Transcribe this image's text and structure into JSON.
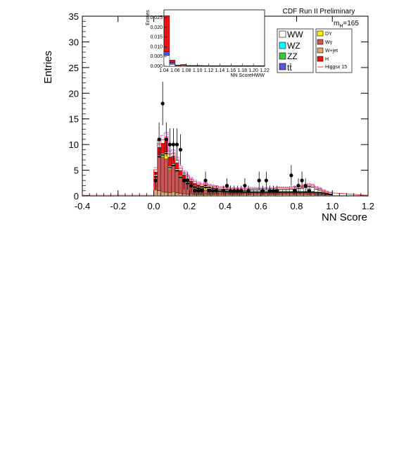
{
  "chart_data": {
    "type": "bar",
    "xlabel": "NN Score",
    "ylabel": "Entries",
    "xlim": [
      -0.4,
      1.2
    ],
    "ylim": [
      0,
      35
    ],
    "x_ticks": [
      "-0.4",
      "-0.2",
      "0.0",
      "0.2",
      "0.4",
      "0.6",
      "0.8",
      "1.0",
      "1.2"
    ],
    "y_ticks": [
      "0",
      "5",
      "10",
      "15",
      "20",
      "25",
      "30",
      "35"
    ],
    "header": "CDF Run II Preliminary",
    "mass_label_main": "m",
    "mass_label_sub": "H",
    "mass_label_value": "=165",
    "bin_width": 0.02,
    "bin_start": 0.0,
    "stack_series": [
      {
        "name": "H",
        "color": "#ee1111",
        "values": [
          0.5,
          1.5,
          2.0,
          2.2,
          1.8,
          1.5,
          1.2,
          1.0,
          0.8,
          0.6,
          0.5,
          0.4,
          0.3,
          0.25,
          0.2,
          0.2,
          0.15,
          0.15,
          0.1,
          0.1,
          0.1,
          0.08,
          0.08,
          0.06,
          0.06,
          0.05,
          0.05,
          0.05,
          0.04,
          0.04,
          0.04,
          0.03,
          0.03,
          0.03,
          0.03,
          0.02,
          0.02,
          0.02,
          0.02,
          0.02,
          0.02,
          0.02,
          0.01,
          0.01,
          0.01,
          0.01,
          0.01,
          0.01,
          0.01,
          0.01
        ]
      },
      {
        "name": "WW",
        "color": "#ffffff",
        "values": [
          0.3,
          0.2,
          0.2,
          0.2,
          0.2,
          0.2,
          0.2,
          0.2,
          0.2,
          0.2,
          0.2,
          0.2,
          0.2,
          0.2,
          0.2,
          0.2,
          0.2,
          0.2,
          0.2,
          0.2,
          0.2,
          0.2,
          0.2,
          0.2,
          0.2,
          0.2,
          0.2,
          0.3,
          0.3,
          0.3,
          0.3,
          0.3,
          0.3,
          0.3,
          0.4,
          0.4,
          0.4,
          0.4,
          0.5,
          0.5,
          0.6,
          0.7,
          0.8,
          1.0,
          0.9,
          0.6,
          0.4,
          0.2,
          0.1,
          0.05
        ]
      },
      {
        "name": "WZ",
        "color": "#00ffff",
        "values": [
          0.05,
          0.05,
          0.05,
          0.05,
          0.05,
          0.05,
          0.05,
          0.05,
          0.05,
          0.05,
          0.05,
          0.05,
          0.05,
          0.05,
          0.05,
          0.05,
          0.05,
          0.05,
          0.05,
          0.05,
          0.05,
          0.05,
          0.05,
          0.05,
          0.05,
          0.05,
          0.05,
          0.05,
          0.05,
          0.05,
          0.05,
          0.05,
          0.05,
          0.05,
          0.05,
          0.05,
          0.05,
          0.05,
          0.05,
          0.05,
          0.05,
          0.05,
          0.05,
          0.05,
          0.05,
          0.05,
          0.05,
          0.05,
          0.05,
          0.05
        ]
      },
      {
        "name": "ZZ",
        "color": "#33cc33",
        "values": [
          0.05,
          0.05,
          0.05,
          0.05,
          0.05,
          0.05,
          0.05,
          0.05,
          0.05,
          0.05,
          0.05,
          0.05,
          0.05,
          0.05,
          0.05,
          0.05,
          0.05,
          0.05,
          0.05,
          0.05,
          0.05,
          0.05,
          0.05,
          0.05,
          0.05,
          0.05,
          0.05,
          0.05,
          0.05,
          0.05,
          0.05,
          0.05,
          0.05,
          0.05,
          0.05,
          0.05,
          0.05,
          0.05,
          0.05,
          0.05,
          0.05,
          0.05,
          0.05,
          0.05,
          0.05,
          0.05,
          0.05,
          0.05,
          0.05,
          0.05
        ]
      },
      {
        "name": "tt̄",
        "color": "#5555dd",
        "values": [
          0.05,
          0.05,
          0.05,
          0.05,
          0.05,
          0.05,
          0.05,
          0.05,
          0.05,
          0.05,
          0.05,
          0.05,
          0.05,
          0.05,
          0.05,
          0.05,
          0.05,
          0.05,
          0.05,
          0.05,
          0.05,
          0.05,
          0.05,
          0.05,
          0.05,
          0.05,
          0.05,
          0.05,
          0.05,
          0.05,
          0.05,
          0.05,
          0.05,
          0.05,
          0.05,
          0.05,
          0.05,
          0.05,
          0.05,
          0.05,
          0.05,
          0.05,
          0.05,
          0.05,
          0.05,
          0.05,
          0.05,
          0.05,
          0.05,
          0.05
        ]
      },
      {
        "name": "DY",
        "color": "#ffee00",
        "values": [
          0.1,
          0.1,
          0.3,
          1.0,
          0.3,
          0.1,
          0.1,
          0.1,
          0.1,
          0.1,
          0.1,
          0.1,
          0.1,
          0.1,
          0.5,
          0.1,
          0.1,
          0.1,
          0.1,
          0.1,
          0.1,
          0.1,
          0.1,
          0.1,
          0.1,
          0.1,
          0.1,
          0.1,
          0.1,
          0.1,
          0.1,
          0.1,
          0.1,
          0.1,
          0.1,
          0.1,
          0.1,
          0.1,
          0.1,
          0.1,
          0.1,
          0.1,
          0.1,
          0.1,
          0.1,
          0.1,
          0.1,
          0.1,
          0.1,
          0.05
        ]
      },
      {
        "name": "Wγ",
        "color": "#cc5555",
        "values": [
          2.4,
          6.5,
          6.8,
          6.5,
          4.5,
          5.0,
          4.2,
          3.0,
          2.4,
          2.0,
          1.6,
          1.3,
          1.1,
          0.9,
          0.8,
          0.8,
          0.7,
          0.6,
          0.5,
          0.5,
          0.4,
          0.3,
          0.3,
          0.3,
          0.3,
          0.3,
          0.3,
          0.3,
          0.3,
          0.3,
          0.3,
          0.3,
          0.3,
          0.3,
          0.3,
          0.3,
          0.3,
          0.3,
          0.3,
          0.3,
          0.3,
          0.3,
          0.3,
          0.3,
          0.3,
          0.3,
          0.3,
          0.2,
          0.1,
          0.05
        ]
      },
      {
        "name": "W+jet",
        "color": "#d9a87a",
        "values": [
          1.2,
          1.0,
          0.8,
          0.7,
          0.6,
          0.8,
          0.6,
          0.5,
          0.4,
          0.3,
          0.3,
          0.3,
          0.3,
          0.3,
          0.3,
          0.3,
          0.3,
          0.3,
          0.3,
          0.3,
          0.3,
          0.3,
          0.3,
          0.3,
          0.3,
          0.3,
          0.3,
          0.3,
          0.3,
          0.3,
          0.3,
          0.3,
          0.3,
          0.3,
          0.3,
          0.3,
          0.3,
          0.3,
          0.3,
          0.3,
          0.3,
          0.3,
          0.3,
          0.3,
          0.3,
          0.2,
          0.2,
          0.15,
          0.1,
          0.05
        ]
      }
    ],
    "signal_overlay": {
      "name": "Higgsx 15",
      "color": "#ff3333"
    },
    "data_points": {
      "x": [
        0.01,
        0.03,
        0.05,
        0.07,
        0.09,
        0.11,
        0.13,
        0.15,
        0.17,
        0.19,
        0.21,
        0.23,
        0.25,
        0.27,
        0.29,
        0.31,
        0.33,
        0.35,
        0.37,
        0.39,
        0.41,
        0.43,
        0.45,
        0.47,
        0.49,
        0.51,
        0.53,
        0.55,
        0.57,
        0.59,
        0.61,
        0.63,
        0.65,
        0.67,
        0.69,
        0.71,
        0.73,
        0.75,
        0.77,
        0.79,
        0.81,
        0.83,
        0.85,
        0.87,
        0.89,
        0.91,
        0.93,
        0.95,
        0.97,
        0.99
      ],
      "y": [
        3,
        11,
        18,
        11,
        10,
        10,
        10,
        9,
        3,
        3,
        2,
        1,
        1,
        1,
        3,
        1,
        1,
        1,
        0,
        1,
        2,
        1,
        1,
        1,
        1,
        2,
        1,
        0,
        0,
        3,
        1,
        3,
        1,
        1,
        1,
        0,
        0,
        0,
        4,
        1,
        2,
        3,
        2,
        1,
        0,
        0,
        0,
        0,
        0,
        0
      ]
    },
    "legend_left": [
      "WW",
      "WZ",
      "ZZ",
      "tt̄"
    ],
    "legend_right": [
      "DY",
      "Wγ",
      "W+jet",
      "H",
      "Higgsx 15"
    ],
    "inset": {
      "ylabel": "Entries",
      "xlabel": "NN ScoreHWW",
      "y_ticks": [
        "0.000",
        "0.005",
        "0.010",
        "0.015",
        "0.020",
        "0.025"
      ],
      "x_ticks": [
        "1.04",
        "1.06",
        "1.08",
        "1.10",
        "1.12",
        "1.14",
        "1.16",
        "1.18",
        "1.20",
        "1.22"
      ],
      "ylim": [
        0,
        0.029
      ],
      "xlim": [
        1.04,
        1.22
      ],
      "bins_x": [
        1.04,
        1.05,
        1.06,
        1.07,
        1.08,
        1.09,
        1.1,
        1.11,
        1.12,
        1.13,
        1.14,
        1.15,
        1.16,
        1.17,
        1.18,
        1.19,
        1.2,
        1.21,
        1.22
      ],
      "series": [
        {
          "name": "WW",
          "color": "#ffffff",
          "values": [
            0.0055,
            0.001,
            0.0003,
            0.0004,
            0.0002,
            0.0002,
            0.0002,
            0.0001,
            0.0001,
            0.0001,
            0.0001,
            0.0001,
            0.0001,
            0.0001,
            0.0001,
            0.0001,
            0.0001,
            0.0001
          ]
        },
        {
          "name": "tt̄",
          "color": "#5555dd",
          "values": [
            0.002,
            0.001,
            0.0001,
            0.0001,
            0.0001,
            0.0001,
            0.0001,
            0.0001,
            0.0001,
            0.0001,
            0.0001,
            0.0001,
            0.0001,
            0.0001,
            0.0001,
            0.0001,
            0.0001,
            0.0001
          ]
        },
        {
          "name": "H",
          "color": "#ee1111",
          "values": [
            0.0185,
            0.0012,
            0.0002,
            0.0004,
            0.0001,
            0.0001,
            0.0001,
            0.0001,
            0.0001,
            0.0001,
            0.0001,
            0.0001,
            0.0001,
            0.0001,
            0.0001,
            0.0001,
            0.0001,
            0.0001
          ]
        }
      ]
    }
  }
}
